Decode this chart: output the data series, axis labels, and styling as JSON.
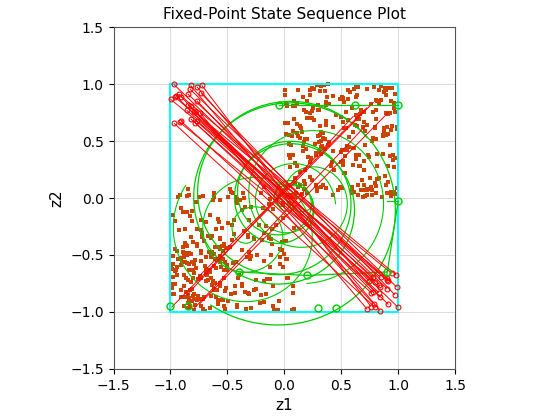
{
  "title": "Fixed-Point State Sequence Plot",
  "xlabel": "z1",
  "ylabel": "z2",
  "xlim": [
    -1.5,
    1.5
  ],
  "ylim": [
    -1.5,
    1.5
  ],
  "xticks": [
    -1.5,
    -1.0,
    -0.5,
    0.0,
    0.5,
    1.0,
    1.5
  ],
  "yticks": [
    -1.5,
    -1.0,
    -0.5,
    0.0,
    0.5,
    1.0,
    1.5
  ],
  "box_color": "#00ffff",
  "background_color": "#ffffff",
  "grid_color": "#d0d0d0",
  "red_line_color": "#ff0000",
  "green_line_color": "#00cc00",
  "scatter_color": "#cc4400",
  "scatter_size": 5,
  "seed": 42
}
